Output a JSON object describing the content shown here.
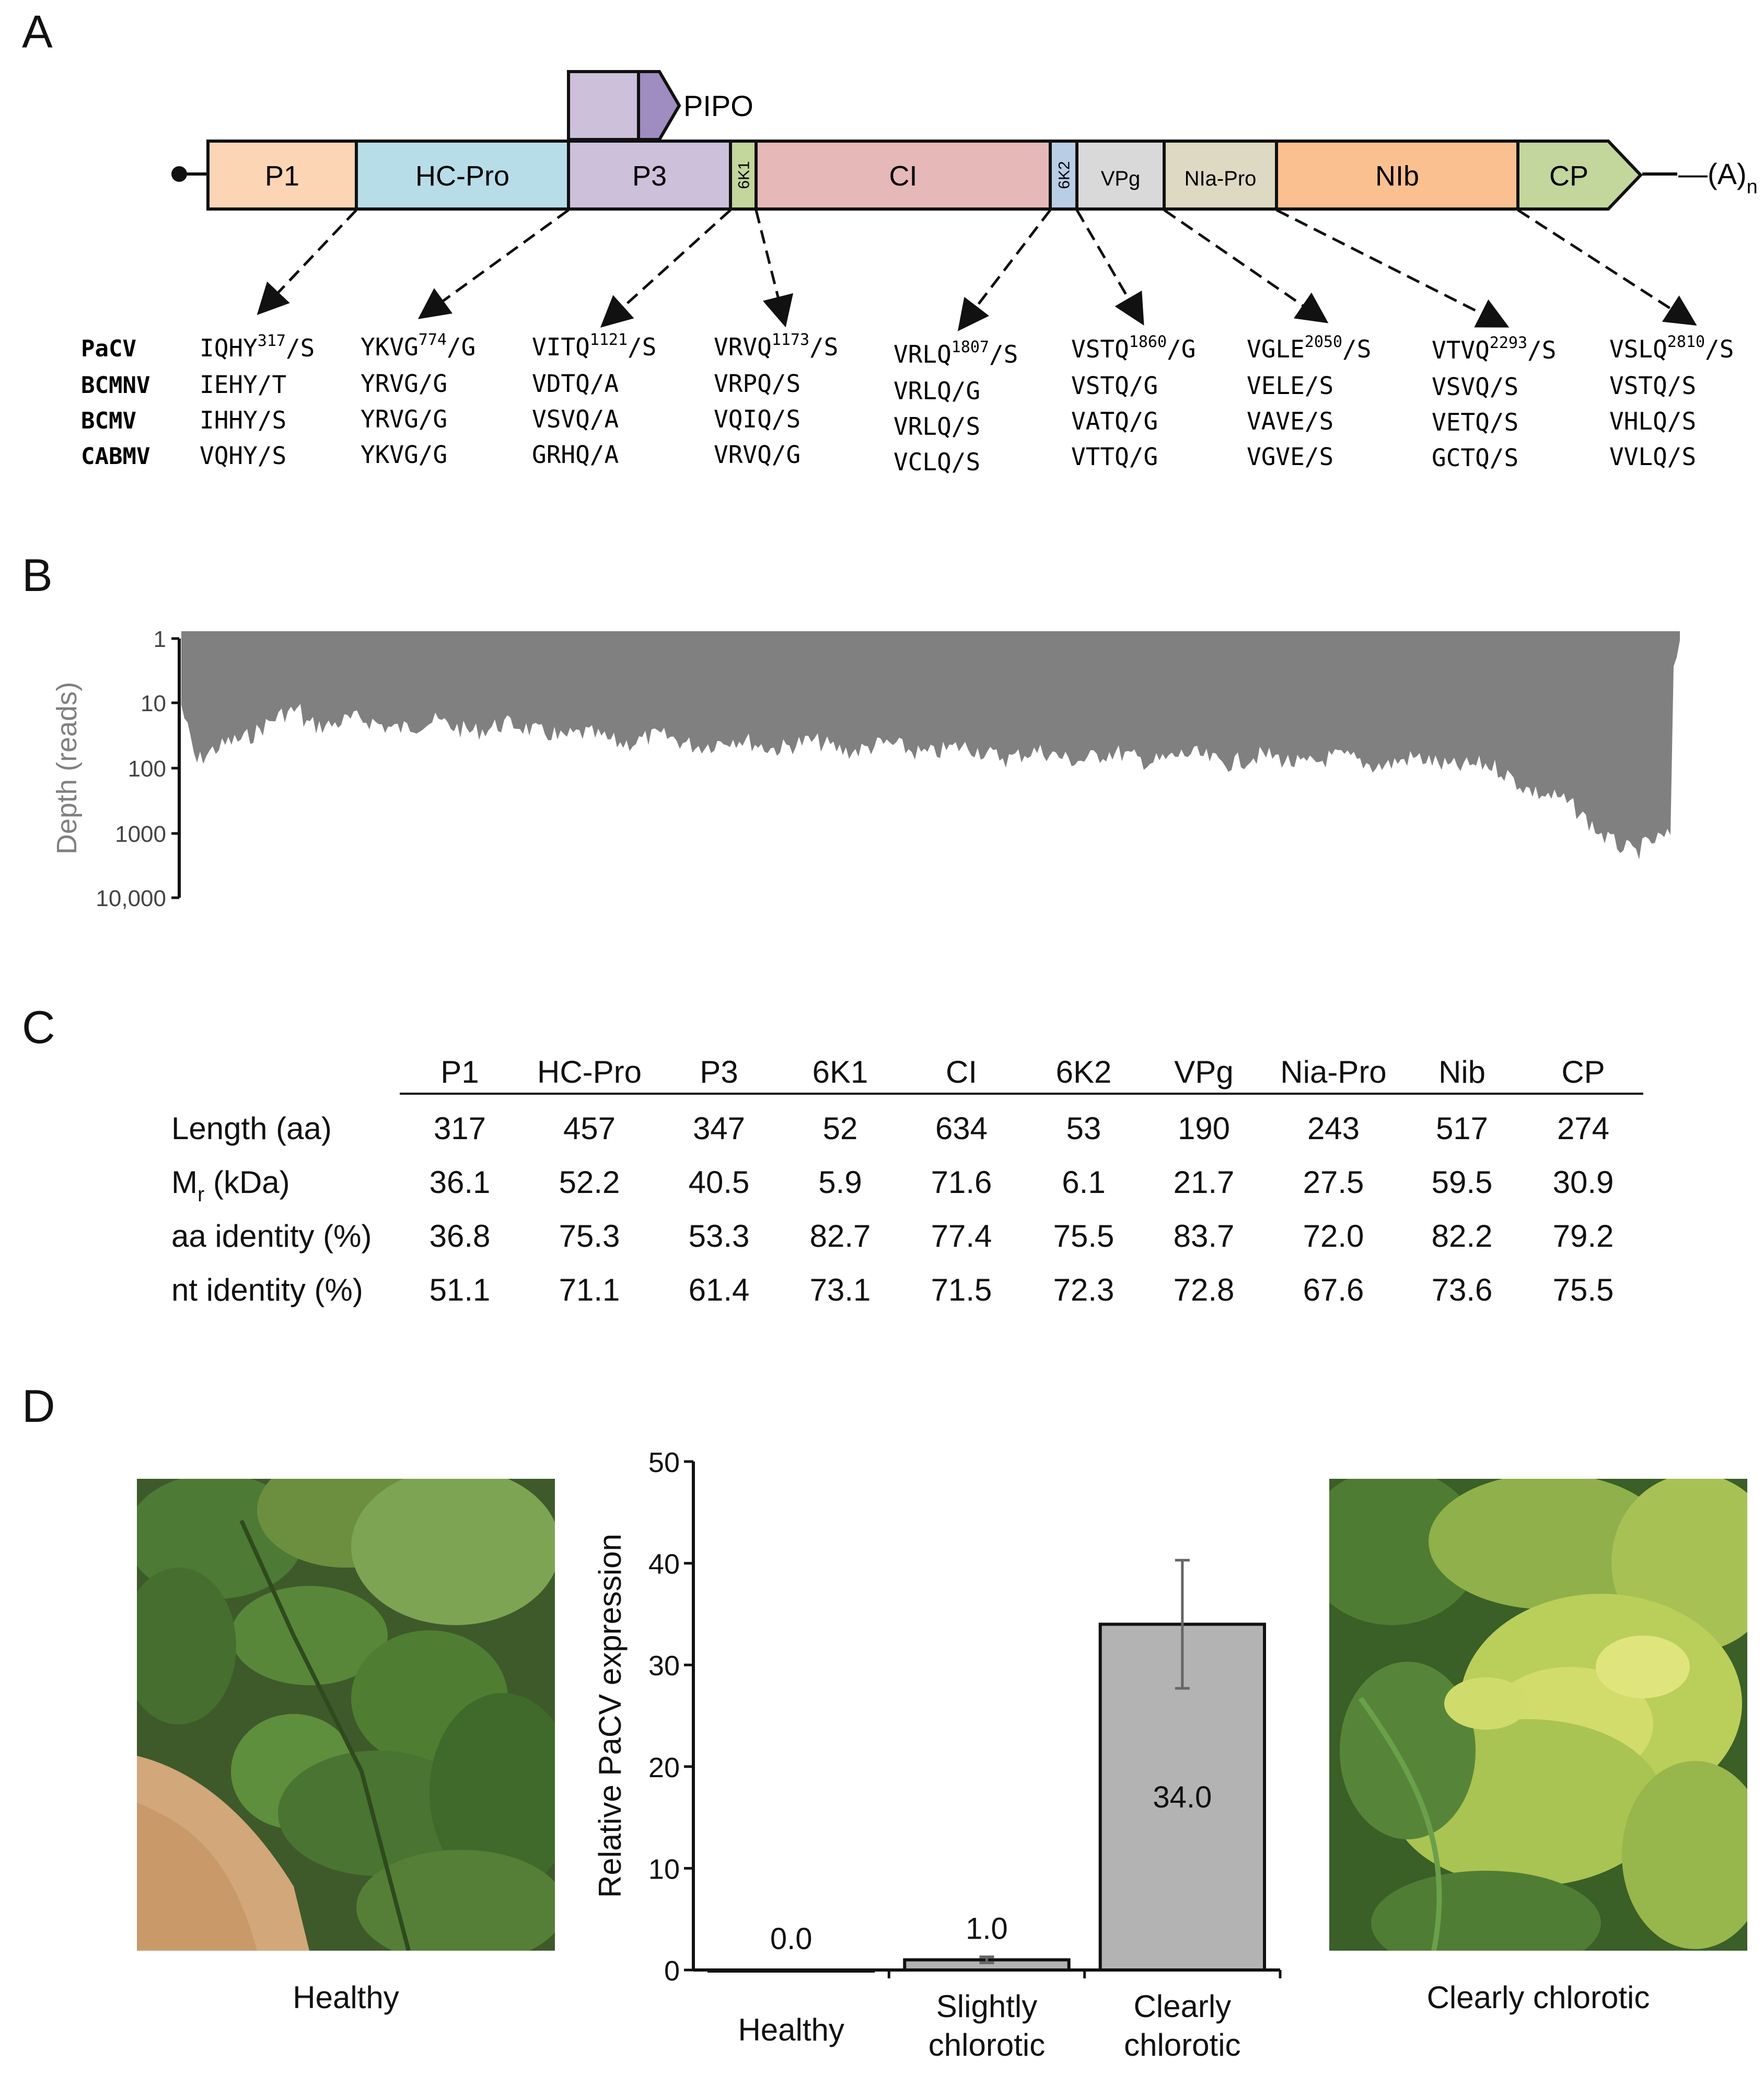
{
  "panels": [
    "A",
    "B",
    "C",
    "D"
  ],
  "genome": {
    "genes": [
      {
        "label": "P1",
        "color": "#fcd5b5"
      },
      {
        "label": "HC-Pro",
        "color": "#b7dde8"
      },
      {
        "label": "P3",
        "color": "#ccc0da"
      },
      {
        "label": "6K1",
        "color": "#c3d69b"
      },
      {
        "label": "CI",
        "color": "#e6b9b8"
      },
      {
        "label": "6K2",
        "color": "#b9cde5"
      },
      {
        "label": "VPg",
        "color": "#d9d9d9"
      },
      {
        "label": "NIa-Pro",
        "color": "#ddd9c3"
      },
      {
        "label": "NIb",
        "color": "#fac090"
      },
      {
        "label": "CP",
        "color": "#c3d69b"
      }
    ],
    "pipo_label": "PIPO",
    "polya_label": "—(A)",
    "polya_sub": "n"
  },
  "cleavage": {
    "organisms": [
      "PaCV",
      "BCMNV",
      "BCMV",
      "CABMV"
    ],
    "sites": [
      {
        "pacv": "IQHY",
        "pos": "317",
        "tail": "/S",
        "others": [
          "IEHY/T",
          "IHHY/S",
          "VQHY/S"
        ]
      },
      {
        "pacv": "YKVG",
        "pos": "774",
        "tail": "/G",
        "others": [
          "YRVG/G",
          "YRVG/G",
          "YKVG/G"
        ]
      },
      {
        "pacv": "VITQ",
        "pos": "1121",
        "tail": "/S",
        "others": [
          "VDTQ/A",
          "VSVQ/A",
          "GRHQ/A"
        ]
      },
      {
        "pacv": "VRVQ",
        "pos": "1173",
        "tail": "/S",
        "others": [
          "VRPQ/S",
          "VQIQ/S",
          "VRVQ/G"
        ]
      },
      {
        "pacv": "VRLQ",
        "pos": "1807",
        "tail": "/S",
        "others": [
          "VRLQ/G",
          "VRLQ/S",
          "VCLQ/S"
        ]
      },
      {
        "pacv": "VSTQ",
        "pos": "1860",
        "tail": "/G",
        "others": [
          "VSTQ/G",
          "VATQ/G",
          "VTTQ/G"
        ]
      },
      {
        "pacv": "VGLE",
        "pos": "2050",
        "tail": "/S",
        "others": [
          "VELE/S",
          "VAVE/S",
          "VGVE/S"
        ]
      },
      {
        "pacv": "VTVQ",
        "pos": "2293",
        "tail": "/S",
        "others": [
          "VSVQ/S",
          "VETQ/S",
          "GCTQ/S"
        ]
      },
      {
        "pacv": "VSLQ",
        "pos": "2810",
        "tail": "/S",
        "others": [
          "VSTQ/S",
          "VHLQ/S",
          "VVLQ/S"
        ]
      }
    ]
  },
  "depth": {
    "ylabel": "Depth (reads)",
    "ticks": [
      "1",
      "10",
      "100",
      "1000",
      "10,000"
    ],
    "fill": "#808080"
  },
  "table": {
    "columns": [
      "P1",
      "HC-Pro",
      "P3",
      "6K1",
      "CI",
      "6K2",
      "VPg",
      "Nia-Pro",
      "Nib",
      "CP"
    ],
    "rows": [
      {
        "label": "Length (aa)",
        "values": [
          "317",
          "457",
          "347",
          "52",
          "634",
          "53",
          "190",
          "243",
          "517",
          "274"
        ]
      },
      {
        "label": "M",
        "label_sub": "r",
        "label_tail": " (kDa)",
        "values": [
          "36.1",
          "52.2",
          "40.5",
          "5.9",
          "71.6",
          "6.1",
          "21.7",
          "27.5",
          "59.5",
          "30.9"
        ]
      },
      {
        "label": "aa identity (%)",
        "values": [
          "36.8",
          "75.3",
          "53.3",
          "82.7",
          "77.4",
          "75.5",
          "83.7",
          "72.0",
          "82.2",
          "79.2"
        ]
      },
      {
        "label": "nt identity (%)",
        "values": [
          "51.1",
          "71.1",
          "61.4",
          "73.1",
          "71.5",
          "72.3",
          "72.8",
          "67.6",
          "73.6",
          "75.5"
        ]
      }
    ]
  },
  "photos": {
    "left_caption": "Healthy",
    "right_caption": "Clearly chlorotic"
  },
  "chart_data": {
    "type": "bar",
    "categories": [
      "Healthy",
      "Slightly chlorotic",
      "Clearly chlorotic"
    ],
    "category_lines": [
      [
        "Healthy"
      ],
      [
        "Slightly",
        "chlorotic"
      ],
      [
        "Clearly",
        "chlorotic"
      ]
    ],
    "values": [
      0.0,
      1.0,
      34.0
    ],
    "value_labels": [
      "0.0",
      "1.0",
      "34.0"
    ],
    "errors": [
      0,
      0.3,
      6.3
    ],
    "ylabel": "Relative PaCV expression",
    "ylim": [
      0,
      50
    ],
    "yticks": [
      0,
      10,
      20,
      30,
      40,
      50
    ],
    "bar_color": "#b3b3b3"
  }
}
